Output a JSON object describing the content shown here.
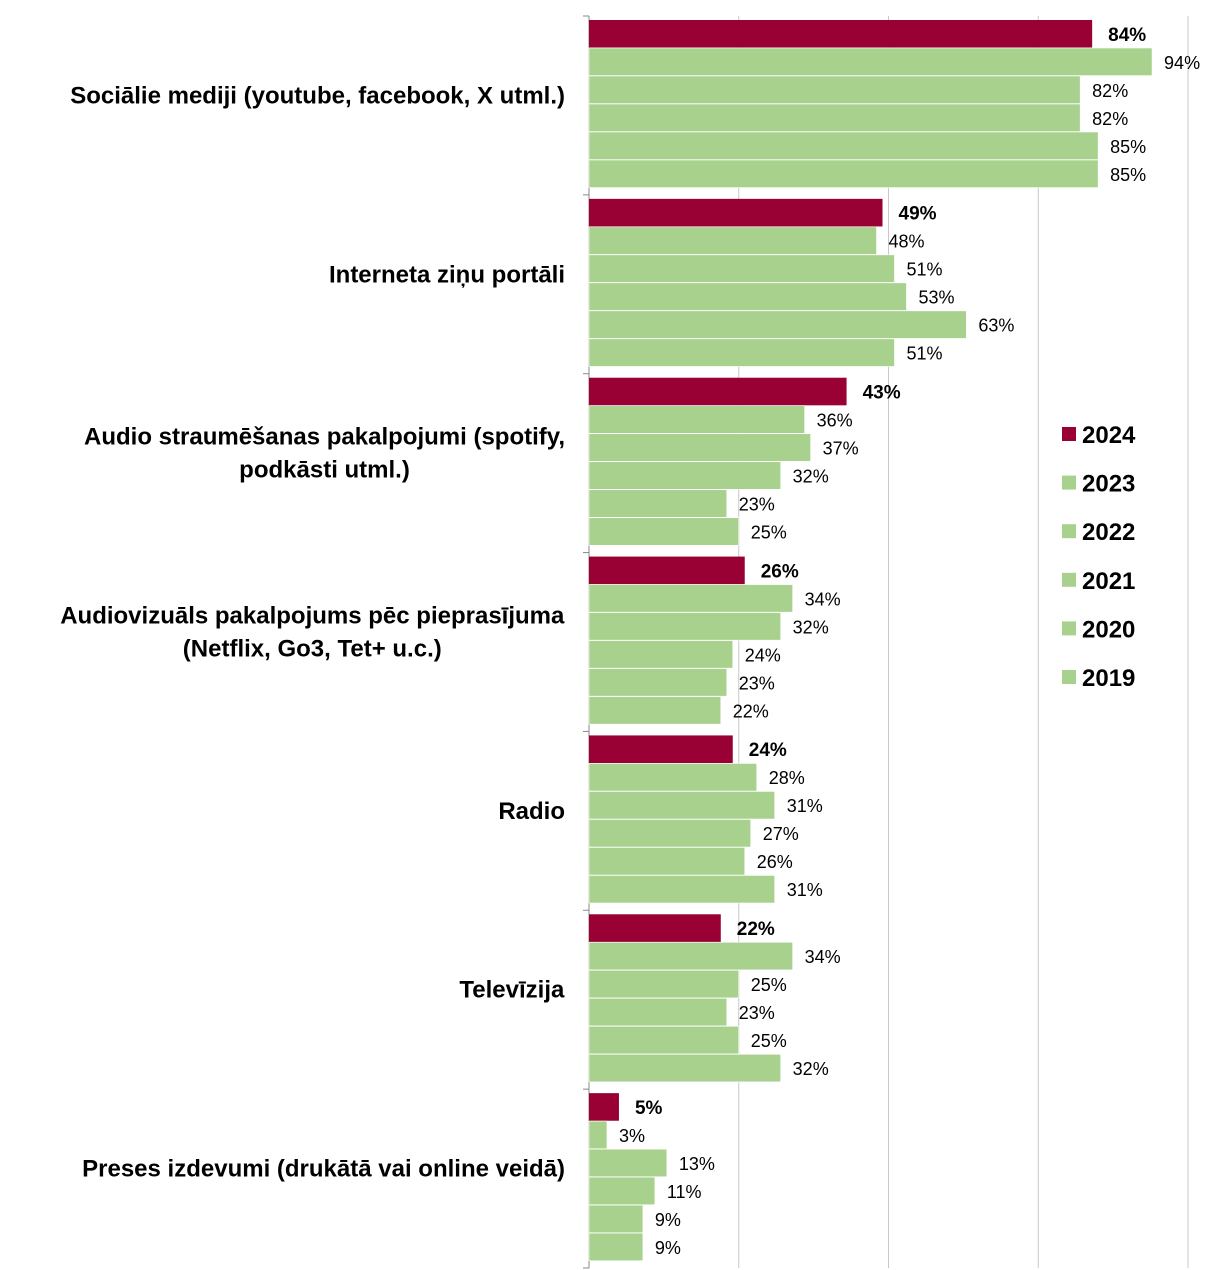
{
  "chart_data": {
    "type": "bar",
    "orientation": "horizontal",
    "categories": [
      "Sociālie mediji (youtube, facebook, X utml.)",
      "Interneta ziņu portāli",
      "Audio straumēšanas pakalpojumi (spotify, podkāsti utml.)",
      "Audiovizuāls pakalpojums pēc pieprasījuma (Netflix, Go3, Tet+ u.c.)",
      "Radio",
      "Televīzija",
      "Preses izdevumi (drukātā vai online veidā)"
    ],
    "series": [
      {
        "name": "2024",
        "color": "#990033",
        "values": [
          84,
          49,
          43,
          26,
          24,
          22,
          5
        ],
        "labels": [
          "84%",
          "49%",
          "43%",
          "26%",
          "24%",
          "22%",
          "5%"
        ]
      },
      {
        "name": "2023",
        "color": "#a9d18e",
        "values": [
          94,
          48,
          36,
          34,
          28,
          34,
          3
        ],
        "labels": [
          "94%",
          "48%",
          "36%",
          "34%",
          "28%",
          "34%",
          "3%"
        ]
      },
      {
        "name": "2022",
        "color": "#a9d18e",
        "values": [
          82,
          51,
          37,
          32,
          31,
          25,
          13
        ],
        "labels": [
          "82%",
          "51%",
          "37%",
          "32%",
          "31%",
          "25%",
          "13%"
        ]
      },
      {
        "name": "2021",
        "color": "#a9d18e",
        "values": [
          82,
          53,
          32,
          24,
          27,
          23,
          11
        ],
        "labels": [
          "82%",
          "53%",
          "32%",
          "24%",
          "27%",
          "23%",
          "11%"
        ]
      },
      {
        "name": "2020",
        "color": "#a9d18e",
        "values": [
          85,
          63,
          23,
          23,
          26,
          25,
          9
        ],
        "labels": [
          "85%",
          "63%",
          "23%",
          "23%",
          "26%",
          "25%",
          "9%"
        ]
      },
      {
        "name": "2019",
        "color": "#a9d18e",
        "values": [
          85,
          51,
          25,
          22,
          31,
          32,
          9
        ],
        "labels": [
          "85%",
          "51%",
          "25%",
          "22%",
          "31%",
          "32%",
          "9%"
        ]
      }
    ],
    "xlim": [
      0,
      100
    ],
    "grid": true,
    "legend_position": "right",
    "title": "",
    "xlabel": "",
    "ylabel": ""
  }
}
